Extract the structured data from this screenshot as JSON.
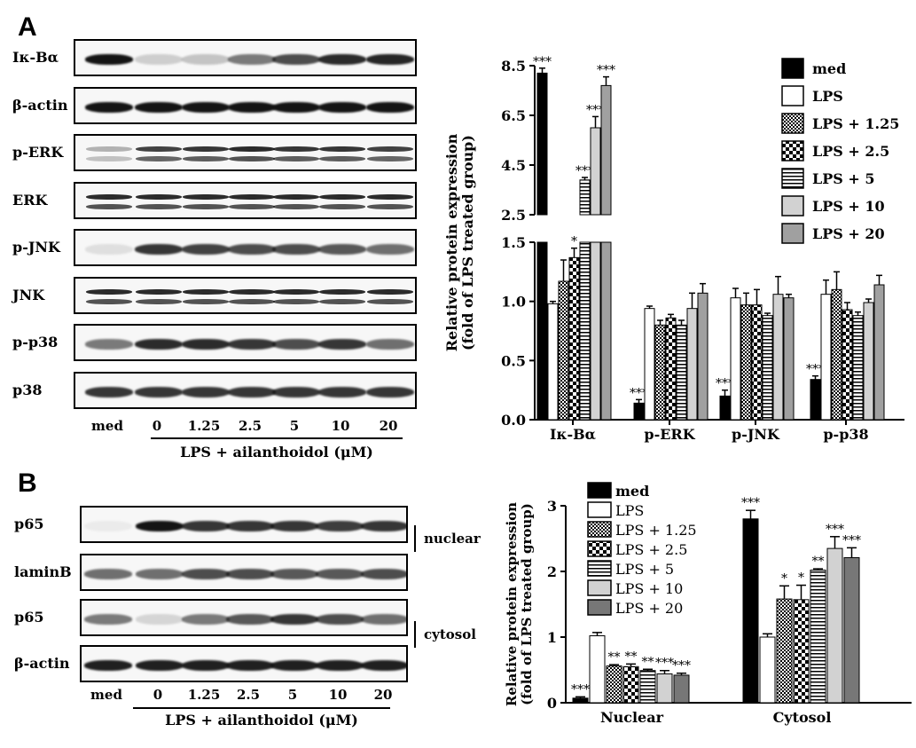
{
  "panels": {
    "a": {
      "letter": "A",
      "blots": [
        {
          "label": "Iκ-Bα",
          "intensity": [
            1.0,
            0.18,
            0.22,
            0.55,
            0.75,
            0.9,
            0.92
          ],
          "rows": 1
        },
        {
          "label": "β-actin",
          "intensity": [
            1,
            1,
            1,
            1,
            1,
            1,
            1
          ],
          "rows": 1
        },
        {
          "label": "p-ERK",
          "intensity": [
            0.3,
            0.8,
            0.85,
            0.9,
            0.85,
            0.85,
            0.8
          ],
          "rows": 2
        },
        {
          "label": "ERK",
          "intensity": [
            0.9,
            0.9,
            0.9,
            0.9,
            0.9,
            0.9,
            0.9
          ],
          "rows": 2
        },
        {
          "label": "p-JNK",
          "intensity": [
            0.1,
            0.85,
            0.8,
            0.75,
            0.75,
            0.7,
            0.6
          ],
          "rows": 1
        },
        {
          "label": "JNK",
          "intensity": [
            0.9,
            0.9,
            0.9,
            0.9,
            0.9,
            0.9,
            0.9
          ],
          "rows": 2
        },
        {
          "label": "p-p38",
          "intensity": [
            0.55,
            0.9,
            0.9,
            0.85,
            0.75,
            0.85,
            0.6
          ],
          "rows": 1
        },
        {
          "label": "p38",
          "intensity": [
            0.85,
            0.85,
            0.85,
            0.85,
            0.85,
            0.85,
            0.85
          ],
          "rows": 1
        }
      ],
      "lanes": [
        "med",
        "0",
        "1.25",
        "2.5",
        "5",
        "10",
        "20"
      ],
      "treatment_label": "LPS + ailanthoidol (μM)"
    },
    "b": {
      "letter": "B",
      "blots": [
        {
          "label": "p65",
          "intensity": [
            0.05,
            1.0,
            0.85,
            0.85,
            0.85,
            0.82,
            0.85
          ],
          "rows": 1
        },
        {
          "label": "laminB",
          "intensity": [
            0.6,
            0.6,
            0.75,
            0.75,
            0.7,
            0.7,
            0.75
          ],
          "rows": 1
        },
        {
          "label": "p65",
          "intensity": [
            0.55,
            0.15,
            0.55,
            0.7,
            0.85,
            0.75,
            0.6
          ],
          "rows": 1
        },
        {
          "label": "β-actin",
          "intensity": [
            0.95,
            0.95,
            0.95,
            0.95,
            0.95,
            0.95,
            0.95
          ],
          "rows": 1
        }
      ],
      "fractions": [
        "nuclear",
        "cytosol"
      ],
      "lanes": [
        "med",
        "0",
        "1.25",
        "2.5",
        "5",
        "10",
        "20"
      ],
      "treatment_label": "LPS + ailanthoidol (μM)"
    }
  },
  "chart_data": [
    {
      "type": "bar",
      "ylabel": "Relative protein expression (fold of LPS treated group)",
      "categories": [
        "Iκ-Bα",
        "p-ERK",
        "p-JNK",
        "p-p38"
      ],
      "y_axis_lower": {
        "ticks": [
          "0.0",
          "0.5",
          "1.0",
          "1.5"
        ],
        "range": [
          0,
          1.5
        ]
      },
      "y_axis_upper": {
        "ticks": [
          "2.5",
          "4.5",
          "6.5",
          "8.5"
        ],
        "range": [
          2.5,
          8.5
        ]
      },
      "series": [
        {
          "name": "med",
          "fill": "black",
          "values": [
            8.2,
            0.14,
            0.2,
            0.34
          ],
          "errors": [
            0.2,
            0.03,
            0.05,
            0.03
          ],
          "stars": [
            "***",
            "***",
            "***",
            "***"
          ]
        },
        {
          "name": "LPS",
          "fill": "white",
          "values": [
            0.98,
            0.94,
            1.03,
            1.06
          ],
          "errors": [
            0.02,
            0.02,
            0.08,
            0.12
          ],
          "stars": [
            "",
            "",
            "",
            ""
          ]
        },
        {
          "name": "LPS + 1.25",
          "fill": "checker_small",
          "values": [
            1.17,
            0.8,
            0.97,
            1.1
          ],
          "errors": [
            0.18,
            0.04,
            0.1,
            0.15
          ],
          "stars": [
            "",
            "",
            "",
            ""
          ]
        },
        {
          "name": "LPS + 2.5",
          "fill": "checker_large",
          "values": [
            1.37,
            0.86,
            0.97,
            0.93
          ],
          "errors": [
            0.08,
            0.03,
            0.13,
            0.06
          ],
          "stars": [
            "*",
            "",
            "",
            ""
          ]
        },
        {
          "name": "LPS + 5",
          "fill": "hlines",
          "values": [
            3.9,
            0.8,
            0.88,
            0.88
          ],
          "errors": [
            0.1,
            0.04,
            0.02,
            0.03
          ],
          "stars": [
            "***",
            "",
            "",
            ""
          ]
        },
        {
          "name": "LPS + 10",
          "fill": "lightgray",
          "values": [
            6.0,
            0.94,
            1.06,
            0.99
          ],
          "errors": [
            0.45,
            0.13,
            0.15,
            0.03
          ],
          "stars": [
            "***",
            "",
            "",
            ""
          ]
        },
        {
          "name": "LPS + 20",
          "fill": "gray",
          "values": [
            7.7,
            1.07,
            1.03,
            1.14
          ],
          "errors": [
            0.35,
            0.08,
            0.03,
            0.08
          ],
          "stars": [
            "***",
            "",
            "",
            ""
          ]
        }
      ]
    },
    {
      "type": "bar",
      "ylabel": "Relative protein expression (fold of LPS treated group)",
      "categories": [
        "Nuclear",
        "Cytosol"
      ],
      "ylim": [
        0,
        3
      ],
      "yticks": [
        "0",
        "1",
        "2",
        "3"
      ],
      "series": [
        {
          "name": "med",
          "fill": "black",
          "values": [
            0.07,
            2.8
          ],
          "errors": [
            0.02,
            0.13
          ],
          "stars": [
            "***",
            "***"
          ]
        },
        {
          "name": "LPS",
          "fill": "white",
          "values": [
            1.02,
            1.0
          ],
          "errors": [
            0.05,
            0.05
          ],
          "stars": [
            "",
            ""
          ]
        },
        {
          "name": "LPS + 1.25",
          "fill": "checker_small",
          "values": [
            0.56,
            1.58
          ],
          "errors": [
            0.02,
            0.2
          ],
          "stars": [
            "**",
            "*"
          ]
        },
        {
          "name": "LPS + 2.5",
          "fill": "checker_large",
          "values": [
            0.55,
            1.57
          ],
          "errors": [
            0.04,
            0.22
          ],
          "stars": [
            "**",
            "*"
          ]
        },
        {
          "name": "LPS + 5",
          "fill": "hlines",
          "values": [
            0.49,
            2.02
          ],
          "errors": [
            0.02,
            0.02
          ],
          "stars": [
            "**",
            "**"
          ]
        },
        {
          "name": "LPS + 10",
          "fill": "lightgray",
          "values": [
            0.44,
            2.35
          ],
          "errors": [
            0.05,
            0.18
          ],
          "stars": [
            "***",
            "***"
          ]
        },
        {
          "name": "LPS + 20",
          "fill": "darkgray",
          "values": [
            0.42,
            2.21
          ],
          "errors": [
            0.03,
            0.15
          ],
          "stars": [
            "***",
            "***"
          ]
        }
      ]
    }
  ]
}
